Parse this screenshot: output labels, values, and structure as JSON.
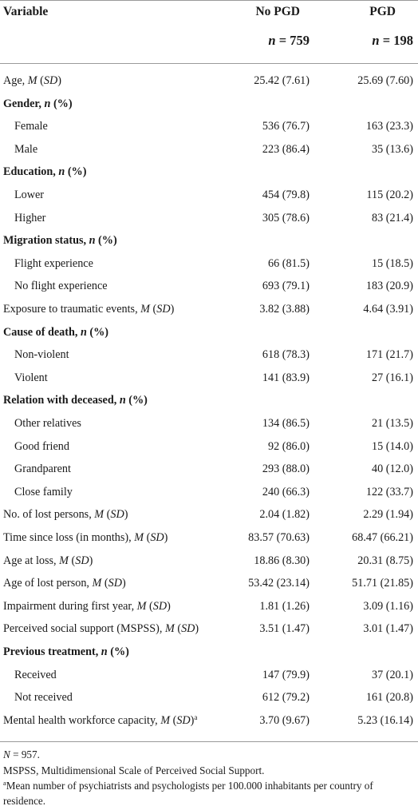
{
  "header": {
    "variable_label": "Variable",
    "col1_label": "No PGD",
    "col2_label": "PGD",
    "col1_n_prefix": "n",
    "col1_n_eq": " = 759",
    "col2_n_prefix": "n",
    "col2_n_eq": " = 198"
  },
  "rows": [
    {
      "type": "data",
      "indent": false,
      "label_parts": [
        [
          "Age, ",
          ""
        ],
        [
          "M",
          "i"
        ],
        [
          " (",
          ""
        ],
        [
          "SD",
          "i"
        ],
        [
          ")",
          ""
        ]
      ],
      "col1": "25.42 (7.61)",
      "col2": "25.69 (7.60)"
    },
    {
      "type": "section",
      "label_parts": [
        [
          "Gender, ",
          ""
        ],
        [
          "n",
          "i"
        ],
        [
          " (%)",
          ""
        ]
      ]
    },
    {
      "type": "data",
      "indent": true,
      "label_parts": [
        [
          "Female",
          ""
        ]
      ],
      "col1": "536 (76.7)",
      "col2": "163 (23.3)"
    },
    {
      "type": "data",
      "indent": true,
      "label_parts": [
        [
          "Male",
          ""
        ]
      ],
      "col1": "223 (86.4)",
      "col2": "35 (13.6)"
    },
    {
      "type": "section",
      "label_parts": [
        [
          "Education, ",
          ""
        ],
        [
          "n",
          "i"
        ],
        [
          " (%)",
          ""
        ]
      ]
    },
    {
      "type": "data",
      "indent": true,
      "label_parts": [
        [
          "Lower",
          ""
        ]
      ],
      "col1": "454 (79.8)",
      "col2": "115 (20.2)"
    },
    {
      "type": "data",
      "indent": true,
      "label_parts": [
        [
          "Higher",
          ""
        ]
      ],
      "col1": "305 (78.6)",
      "col2": "83 (21.4)"
    },
    {
      "type": "section",
      "label_parts": [
        [
          "Migration status, ",
          ""
        ],
        [
          "n",
          "i"
        ],
        [
          " (%)",
          ""
        ]
      ]
    },
    {
      "type": "data",
      "indent": true,
      "label_parts": [
        [
          "Flight experience",
          ""
        ]
      ],
      "col1": "66 (81.5)",
      "col2": "15 (18.5)"
    },
    {
      "type": "data",
      "indent": true,
      "label_parts": [
        [
          "No flight experience",
          ""
        ]
      ],
      "col1": "693 (79.1)",
      "col2": "183 (20.9)"
    },
    {
      "type": "data",
      "indent": false,
      "label_parts": [
        [
          "Exposure to traumatic events, ",
          ""
        ],
        [
          "M",
          "i"
        ],
        [
          " (",
          ""
        ],
        [
          "SD",
          "i"
        ],
        [
          ")",
          ""
        ]
      ],
      "col1": "3.82 (3.88)",
      "col2": "4.64 (3.91)"
    },
    {
      "type": "section",
      "label_parts": [
        [
          "Cause of death, ",
          ""
        ],
        [
          "n",
          "i"
        ],
        [
          " (%)",
          ""
        ]
      ]
    },
    {
      "type": "data",
      "indent": true,
      "label_parts": [
        [
          "Non-violent",
          ""
        ]
      ],
      "col1": "618 (78.3)",
      "col2": "171 (21.7)"
    },
    {
      "type": "data",
      "indent": true,
      "label_parts": [
        [
          "Violent",
          ""
        ]
      ],
      "col1": "141 (83.9)",
      "col2": "27 (16.1)"
    },
    {
      "type": "section",
      "label_parts": [
        [
          "Relation with deceased, ",
          ""
        ],
        [
          "n",
          "i"
        ],
        [
          " (%)",
          ""
        ]
      ]
    },
    {
      "type": "data",
      "indent": true,
      "label_parts": [
        [
          "Other relatives",
          ""
        ]
      ],
      "col1": "134 (86.5)",
      "col2": "21 (13.5)"
    },
    {
      "type": "data",
      "indent": true,
      "label_parts": [
        [
          "Good friend",
          ""
        ]
      ],
      "col1": "92 (86.0)",
      "col2": "15 (14.0)"
    },
    {
      "type": "data",
      "indent": true,
      "label_parts": [
        [
          "Grandparent",
          ""
        ]
      ],
      "col1": "293 (88.0)",
      "col2": "40 (12.0)"
    },
    {
      "type": "data",
      "indent": true,
      "label_parts": [
        [
          "Close family",
          ""
        ]
      ],
      "col1": "240 (66.3)",
      "col2": "122 (33.7)"
    },
    {
      "type": "data",
      "indent": false,
      "label_parts": [
        [
          "No. of lost persons, ",
          ""
        ],
        [
          "M",
          "i"
        ],
        [
          " (",
          ""
        ],
        [
          "SD",
          "i"
        ],
        [
          ")",
          ""
        ]
      ],
      "col1": "2.04 (1.82)",
      "col2": "2.29 (1.94)"
    },
    {
      "type": "data",
      "indent": false,
      "label_parts": [
        [
          "Time since loss (in months), ",
          ""
        ],
        [
          "M",
          "i"
        ],
        [
          " (",
          ""
        ],
        [
          "SD",
          "i"
        ],
        [
          ")",
          ""
        ]
      ],
      "col1": "83.57 (70.63)",
      "col2": "68.47 (66.21)"
    },
    {
      "type": "data",
      "indent": false,
      "label_parts": [
        [
          "Age at loss, ",
          ""
        ],
        [
          "M",
          "i"
        ],
        [
          " (",
          ""
        ],
        [
          "SD",
          "i"
        ],
        [
          ")",
          ""
        ]
      ],
      "col1": "18.86 (8.30)",
      "col2": "20.31 (8.75)"
    },
    {
      "type": "data",
      "indent": false,
      "label_parts": [
        [
          "Age of lost person, ",
          ""
        ],
        [
          "M",
          "i"
        ],
        [
          " (",
          ""
        ],
        [
          "SD",
          "i"
        ],
        [
          ")",
          ""
        ]
      ],
      "col1": "53.42 (23.14)",
      "col2": "51.71 (21.85)"
    },
    {
      "type": "data",
      "indent": false,
      "label_parts": [
        [
          "Impairment during first year, ",
          ""
        ],
        [
          "M",
          "i"
        ],
        [
          " (",
          ""
        ],
        [
          "SD",
          "i"
        ],
        [
          ")",
          ""
        ]
      ],
      "col1": "1.81 (1.26)",
      "col2": "3.09 (1.16)"
    },
    {
      "type": "data",
      "indent": false,
      "label_parts": [
        [
          "Perceived social support (MSPSS), ",
          ""
        ],
        [
          "M",
          "i"
        ],
        [
          " (",
          ""
        ],
        [
          "SD",
          "i"
        ],
        [
          ")",
          ""
        ]
      ],
      "col1": "3.51 (1.47)",
      "col2": "3.01 (1.47)"
    },
    {
      "type": "section",
      "label_parts": [
        [
          "Previous treatment, ",
          ""
        ],
        [
          "n",
          "i"
        ],
        [
          " (%)",
          ""
        ]
      ]
    },
    {
      "type": "data",
      "indent": true,
      "label_parts": [
        [
          "Received",
          ""
        ]
      ],
      "col1": "147 (79.9)",
      "col2": "37 (20.1)"
    },
    {
      "type": "data",
      "indent": true,
      "label_parts": [
        [
          "Not received",
          ""
        ]
      ],
      "col1": "612 (79.2)",
      "col2": "161 (20.8)"
    },
    {
      "type": "data",
      "indent": false,
      "label_parts": [
        [
          "Mental health workforce capacity, ",
          ""
        ],
        [
          "M",
          "i"
        ],
        [
          " (",
          ""
        ],
        [
          "SD",
          "i"
        ],
        [
          ")",
          ""
        ],
        [
          "a",
          "s"
        ]
      ],
      "col1": "3.70 (9.67)",
      "col2": "5.23 (16.14)"
    }
  ],
  "footnotes": {
    "n_total_prefix": "N",
    "n_total_eq": " = 957.",
    "mspss": "MSPSS, Multidimensional Scale of Perceived Social Support.",
    "a_mark": "a",
    "a_text": "Mean number of psychiatrists and psychologists per 100.000 inhabitants per country of residence."
  }
}
